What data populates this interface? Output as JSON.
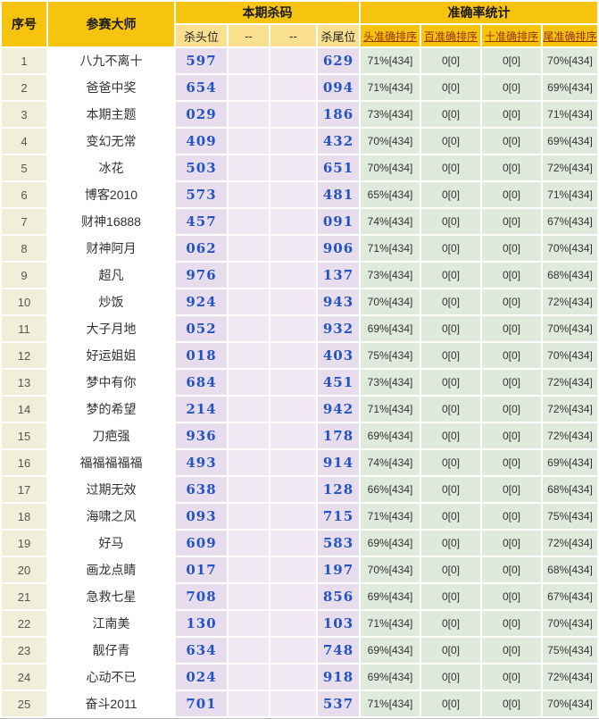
{
  "colors": {
    "header_gold": "#f6c30f",
    "subheader_yellow": "#fae08e",
    "serial_bg": "#f1efda",
    "master_bg": "#ffffff",
    "kill_bg": "#e8ddec",
    "dash_bg": "#f0e8f3",
    "accuracy_bg": "#dfe9dc",
    "number_blue": "#2353c5",
    "link_red": "#993300"
  },
  "table": {
    "header": {
      "col_serial": "序号",
      "col_master": "参赛大师",
      "group_kill": "本期杀码",
      "group_accuracy": "准确率统计",
      "sub_kill": [
        "杀头位",
        "--",
        "--",
        "杀尾位"
      ],
      "sub_accuracy": [
        "头准确排序",
        "百准确排序",
        "十准确排序",
        "尾准确排序"
      ]
    },
    "rows": [
      {
        "no": "1",
        "master": "八九不离十",
        "kill_head": "597",
        "dash1": "",
        "dash2": "",
        "kill_tail": "629",
        "acc_head": "71%[434]",
        "acc_hundred": "0[0]",
        "acc_ten": "0[0]",
        "acc_tail": "70%[434]"
      },
      {
        "no": "2",
        "master": "爸爸中奖",
        "kill_head": "654",
        "dash1": "",
        "dash2": "",
        "kill_tail": "094",
        "acc_head": "71%[434]",
        "acc_hundred": "0[0]",
        "acc_ten": "0[0]",
        "acc_tail": "69%[434]"
      },
      {
        "no": "3",
        "master": "本期主题",
        "kill_head": "029",
        "dash1": "",
        "dash2": "",
        "kill_tail": "186",
        "acc_head": "73%[434]",
        "acc_hundred": "0[0]",
        "acc_ten": "0[0]",
        "acc_tail": "71%[434]"
      },
      {
        "no": "4",
        "master": "变幻无常",
        "kill_head": "409",
        "dash1": "",
        "dash2": "",
        "kill_tail": "432",
        "acc_head": "70%[434]",
        "acc_hundred": "0[0]",
        "acc_ten": "0[0]",
        "acc_tail": "69%[434]"
      },
      {
        "no": "5",
        "master": "冰花",
        "kill_head": "503",
        "dash1": "",
        "dash2": "",
        "kill_tail": "651",
        "acc_head": "70%[434]",
        "acc_hundred": "0[0]",
        "acc_ten": "0[0]",
        "acc_tail": "72%[434]"
      },
      {
        "no": "6",
        "master": "博客2010",
        "kill_head": "573",
        "dash1": "",
        "dash2": "",
        "kill_tail": "481",
        "acc_head": "65%[434]",
        "acc_hundred": "0[0]",
        "acc_ten": "0[0]",
        "acc_tail": "71%[434]"
      },
      {
        "no": "7",
        "master": "财神16888",
        "kill_head": "457",
        "dash1": "",
        "dash2": "",
        "kill_tail": "091",
        "acc_head": "74%[434]",
        "acc_hundred": "0[0]",
        "acc_ten": "0[0]",
        "acc_tail": "67%[434]"
      },
      {
        "no": "8",
        "master": "财神阿月",
        "kill_head": "062",
        "dash1": "",
        "dash2": "",
        "kill_tail": "906",
        "acc_head": "71%[434]",
        "acc_hundred": "0[0]",
        "acc_ten": "0[0]",
        "acc_tail": "70%[434]"
      },
      {
        "no": "9",
        "master": "超凡",
        "kill_head": "976",
        "dash1": "",
        "dash2": "",
        "kill_tail": "137",
        "acc_head": "73%[434]",
        "acc_hundred": "0[0]",
        "acc_ten": "0[0]",
        "acc_tail": "68%[434]"
      },
      {
        "no": "10",
        "master": "炒饭",
        "kill_head": "924",
        "dash1": "",
        "dash2": "",
        "kill_tail": "943",
        "acc_head": "70%[434]",
        "acc_hundred": "0[0]",
        "acc_ten": "0[0]",
        "acc_tail": "72%[434]"
      },
      {
        "no": "11",
        "master": "大子月地",
        "kill_head": "052",
        "dash1": "",
        "dash2": "",
        "kill_tail": "932",
        "acc_head": "69%[434]",
        "acc_hundred": "0[0]",
        "acc_ten": "0[0]",
        "acc_tail": "70%[434]"
      },
      {
        "no": "12",
        "master": "好运姐姐",
        "kill_head": "018",
        "dash1": "",
        "dash2": "",
        "kill_tail": "403",
        "acc_head": "75%[434]",
        "acc_hundred": "0[0]",
        "acc_ten": "0[0]",
        "acc_tail": "70%[434]"
      },
      {
        "no": "13",
        "master": "梦中有你",
        "kill_head": "684",
        "dash1": "",
        "dash2": "",
        "kill_tail": "451",
        "acc_head": "73%[434]",
        "acc_hundred": "0[0]",
        "acc_ten": "0[0]",
        "acc_tail": "72%[434]"
      },
      {
        "no": "14",
        "master": "梦的希望",
        "kill_head": "214",
        "dash1": "",
        "dash2": "",
        "kill_tail": "942",
        "acc_head": "71%[434]",
        "acc_hundred": "0[0]",
        "acc_ten": "0[0]",
        "acc_tail": "72%[434]"
      },
      {
        "no": "15",
        "master": "刀疤强",
        "kill_head": "936",
        "dash1": "",
        "dash2": "",
        "kill_tail": "178",
        "acc_head": "69%[434]",
        "acc_hundred": "0[0]",
        "acc_ten": "0[0]",
        "acc_tail": "72%[434]"
      },
      {
        "no": "16",
        "master": "福福福福福",
        "kill_head": "493",
        "dash1": "",
        "dash2": "",
        "kill_tail": "914",
        "acc_head": "74%[434]",
        "acc_hundred": "0[0]",
        "acc_ten": "0[0]",
        "acc_tail": "69%[434]"
      },
      {
        "no": "17",
        "master": "过期无效",
        "kill_head": "638",
        "dash1": "",
        "dash2": "",
        "kill_tail": "128",
        "acc_head": "66%[434]",
        "acc_hundred": "0[0]",
        "acc_ten": "0[0]",
        "acc_tail": "68%[434]"
      },
      {
        "no": "18",
        "master": "海啸之风",
        "kill_head": "093",
        "dash1": "",
        "dash2": "",
        "kill_tail": "715",
        "acc_head": "71%[434]",
        "acc_hundred": "0[0]",
        "acc_ten": "0[0]",
        "acc_tail": "75%[434]"
      },
      {
        "no": "19",
        "master": "好马",
        "kill_head": "609",
        "dash1": "",
        "dash2": "",
        "kill_tail": "583",
        "acc_head": "69%[434]",
        "acc_hundred": "0[0]",
        "acc_ten": "0[0]",
        "acc_tail": "72%[434]"
      },
      {
        "no": "20",
        "master": "画龙点睛",
        "kill_head": "017",
        "dash1": "",
        "dash2": "",
        "kill_tail": "197",
        "acc_head": "70%[434]",
        "acc_hundred": "0[0]",
        "acc_ten": "0[0]",
        "acc_tail": "68%[434]"
      },
      {
        "no": "21",
        "master": "急救七星",
        "kill_head": "708",
        "dash1": "",
        "dash2": "",
        "kill_tail": "856",
        "acc_head": "69%[434]",
        "acc_hundred": "0[0]",
        "acc_ten": "0[0]",
        "acc_tail": "67%[434]"
      },
      {
        "no": "22",
        "master": "江南美",
        "kill_head": "130",
        "dash1": "",
        "dash2": "",
        "kill_tail": "103",
        "acc_head": "71%[434]",
        "acc_hundred": "0[0]",
        "acc_ten": "0[0]",
        "acc_tail": "70%[434]"
      },
      {
        "no": "23",
        "master": "靓仔青",
        "kill_head": "634",
        "dash1": "",
        "dash2": "",
        "kill_tail": "748",
        "acc_head": "69%[434]",
        "acc_hundred": "0[0]",
        "acc_ten": "0[0]",
        "acc_tail": "75%[434]"
      },
      {
        "no": "24",
        "master": "心动不已",
        "kill_head": "024",
        "dash1": "",
        "dash2": "",
        "kill_tail": "918",
        "acc_head": "69%[434]",
        "acc_hundred": "0[0]",
        "acc_ten": "0[0]",
        "acc_tail": "72%[434]"
      },
      {
        "no": "25",
        "master": "奋斗2011",
        "kill_head": "701",
        "dash1": "",
        "dash2": "",
        "kill_tail": "537",
        "acc_head": "71%[434]",
        "acc_hundred": "0[0]",
        "acc_ten": "0[0]",
        "acc_tail": "70%[434]"
      }
    ]
  }
}
